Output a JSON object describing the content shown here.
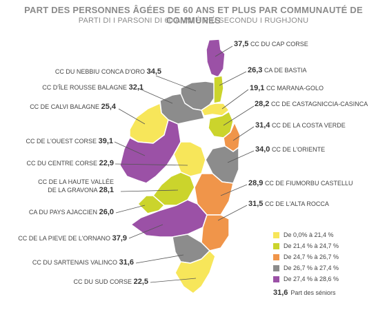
{
  "title": "PART DES PERSONNES ÂGÉES DE 60 ANS ET PLUS PAR COMMUNAUTÉ DE COMMUNES",
  "subtitle": "PARTI DI I PARSONI DI 60 ANNI È PIÙ SECONDU I RUGHJONU",
  "colors": {
    "yellow": "#f7e65a",
    "lime": "#cbd42c",
    "orange": "#f0954a",
    "grey": "#8c8c8c",
    "purple": "#9b51a6",
    "border": "#ffffff"
  },
  "regions": [
    {
      "key": "cap_corse",
      "name": "CC DU CAP CORSE",
      "value": "37,5",
      "color": "purple"
    },
    {
      "key": "bastia",
      "name": "CA DE BASTIA",
      "value": "26,3",
      "color": "lime"
    },
    {
      "key": "marana",
      "name": "CC MARANA-GOLO",
      "value": "19,1",
      "color": "yellow"
    },
    {
      "key": "castagniccia",
      "name": "CC DE CASTAGNICCIA-CASINCA",
      "value": "28,2",
      "color": "lime"
    },
    {
      "key": "costa_verde",
      "name": "CC DE LA COSTA VERDE",
      "value": "31,4",
      "color": "orange"
    },
    {
      "key": "oriente",
      "name": "CC DE L'ORIENTE",
      "value": "34,0",
      "color": "grey"
    },
    {
      "key": "fiumorbu",
      "name": "CC DE FIUMORBU CASTELLU",
      "value": "28,9",
      "color": "orange"
    },
    {
      "key": "alta_rocca",
      "name": "CC DE L'ALTA ROCCA",
      "value": "31,5",
      "color": "orange"
    },
    {
      "key": "nebbiu",
      "name": "CC DU NEBBIU CONCA D'ORO",
      "value": "34,5",
      "color": "grey"
    },
    {
      "key": "ile_rousse",
      "name": "CC D'ÎLE ROUSSE BALAGNE",
      "value": "32,1",
      "color": "grey"
    },
    {
      "key": "calvi",
      "name": "CC DE CALVI BALAGNE",
      "value": "25,4",
      "color": "yellow"
    },
    {
      "key": "ouest_corse",
      "name": "CC DE L'OUEST CORSE",
      "value": "39,1",
      "color": "purple"
    },
    {
      "key": "centre_corse",
      "name": "CC DU CENTRE CORSE",
      "value": "22,9",
      "color": "yellow"
    },
    {
      "key": "gravona",
      "name": "CC DE LA HAUTE VALLÉE\nDE LA GRAVONA",
      "value": "28,1",
      "color": "lime"
    },
    {
      "key": "ajaccien",
      "name": "CA DU PAYS AJACCIEN",
      "value": "26,0",
      "color": "lime"
    },
    {
      "key": "ornano",
      "name": "CC DE LA PIEVE DE L'ORNANO",
      "value": "37,9",
      "color": "purple"
    },
    {
      "key": "sartenais",
      "name": "CC DU SARTENAIS VALINCO",
      "value": "31,6",
      "color": "grey"
    },
    {
      "key": "sud_corse",
      "name": "CC DU SUD CORSE",
      "value": "22,5",
      "color": "yellow"
    }
  ],
  "legend": {
    "items": [
      {
        "label": "De 0,0% à 21,4 %",
        "color": "#f7e65a"
      },
      {
        "label": "De 21,4 % à 24,7 %",
        "color": "#cbd42c"
      },
      {
        "label": "De 24,7 % à 26,7 %",
        "color": "#f0954a"
      },
      {
        "label": "De 26,7 % à 27,4 %",
        "color": "#8c8c8c"
      },
      {
        "label": "De 27,4 % à 28,6 %",
        "color": "#9b51a6"
      }
    ],
    "note_value": "31,6",
    "note_label": "Part des séniors"
  }
}
